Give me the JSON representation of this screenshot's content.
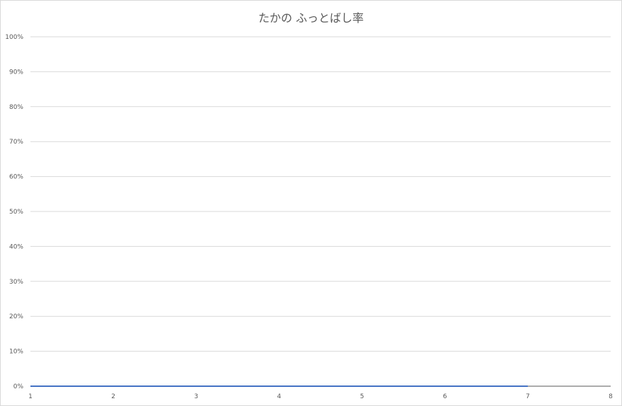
{
  "chart_data": {
    "type": "line",
    "title": "たかの ふっとばし率",
    "xlabel": "",
    "ylabel": "",
    "x": [
      1,
      2,
      3,
      4,
      5,
      6,
      7
    ],
    "series": [
      {
        "values": [
          0,
          0,
          0,
          0,
          0,
          0,
          0
        ],
        "color": "#4472c4"
      }
    ],
    "x_ticks": [
      "1",
      "2",
      "3",
      "4",
      "5",
      "6",
      "7",
      "8"
    ],
    "y_ticks": [
      "0%",
      "10%",
      "20%",
      "30%",
      "40%",
      "50%",
      "60%",
      "70%",
      "80%",
      "90%",
      "100%"
    ],
    "xlim": [
      1,
      8
    ],
    "ylim": [
      0,
      1
    ],
    "grid": true,
    "legend": "none",
    "colors": {
      "gridline": "#d9d9d9",
      "axis": "#595959",
      "series": "#4472c4"
    }
  }
}
